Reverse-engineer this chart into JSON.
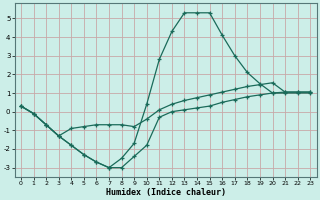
{
  "xlabel": "Humidex (Indice chaleur)",
  "bg_color": "#cceee8",
  "grid_color": "#c8a8a8",
  "line_color": "#1a6b5a",
  "xlim": [
    -0.5,
    23.5
  ],
  "ylim": [
    -3.5,
    5.8
  ],
  "yticks": [
    -3,
    -2,
    -1,
    0,
    1,
    2,
    3,
    4,
    5
  ],
  "xticks": [
    0,
    1,
    2,
    3,
    4,
    5,
    6,
    7,
    8,
    9,
    10,
    11,
    12,
    13,
    14,
    15,
    16,
    17,
    18,
    19,
    20,
    21,
    22,
    23
  ],
  "line1_x": [
    0,
    1,
    2,
    3,
    4,
    5,
    6,
    7,
    8,
    9,
    10,
    11,
    12,
    13,
    14,
    15,
    16,
    17,
    18,
    19,
    20,
    21,
    22,
    23
  ],
  "line1_y": [
    0.3,
    -0.1,
    -0.7,
    -1.3,
    -1.8,
    -2.3,
    -2.7,
    -3.0,
    -2.5,
    -1.7,
    0.4,
    2.8,
    4.3,
    5.3,
    5.3,
    5.3,
    4.1,
    3.0,
    2.1,
    1.5,
    1.0,
    1.0,
    1.0,
    1.0
  ],
  "line2_x": [
    0,
    1,
    2,
    3,
    4,
    5,
    6,
    7,
    8,
    9,
    10,
    11,
    12,
    13,
    14,
    15,
    16,
    17,
    18,
    19,
    20,
    21,
    22,
    23
  ],
  "line2_y": [
    0.3,
    -0.1,
    -0.7,
    -1.3,
    -0.9,
    -0.8,
    -0.7,
    -0.7,
    -0.7,
    -0.8,
    -0.4,
    0.1,
    0.4,
    0.6,
    0.75,
    0.9,
    1.05,
    1.2,
    1.35,
    1.45,
    1.55,
    1.05,
    1.05,
    1.05
  ],
  "line3_x": [
    0,
    1,
    2,
    3,
    4,
    5,
    6,
    7,
    8,
    9,
    10,
    11,
    12,
    13,
    14,
    15,
    16,
    17,
    18,
    19,
    20,
    21,
    22,
    23
  ],
  "line3_y": [
    0.3,
    -0.1,
    -0.7,
    -1.3,
    -1.8,
    -2.3,
    -2.7,
    -3.0,
    -3.0,
    -2.4,
    -1.8,
    -0.3,
    0.0,
    0.1,
    0.2,
    0.3,
    0.5,
    0.65,
    0.8,
    0.9,
    1.0,
    1.05,
    1.05,
    1.05
  ]
}
